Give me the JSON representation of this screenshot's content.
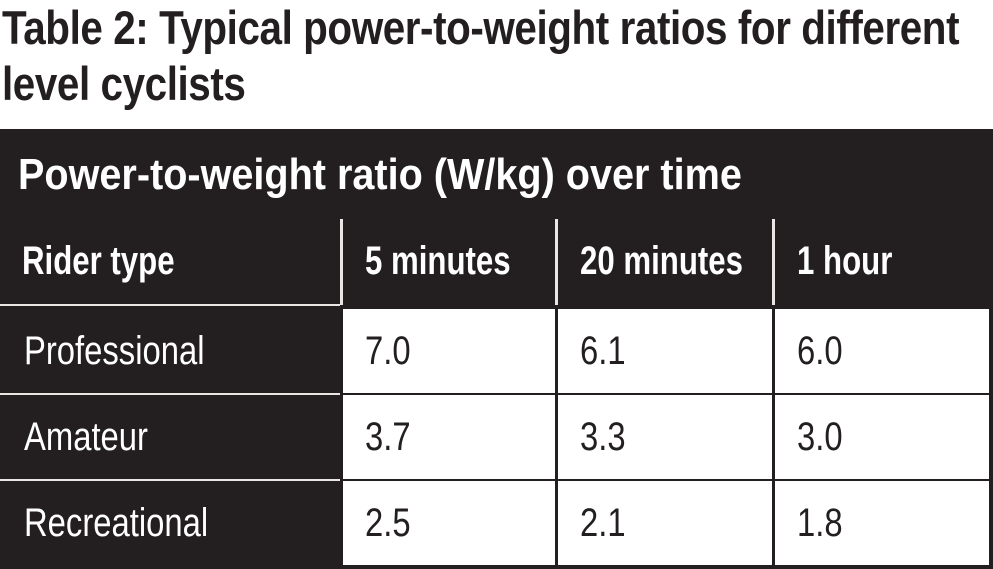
{
  "title": "Table 2: Typical power-to-weight ratios for different level cyclists",
  "banner": "Power-to-weight ratio (W/kg) over time",
  "headers": [
    "Rider type",
    "5 minutes",
    "20 minutes",
    "1 hour"
  ],
  "rows": [
    {
      "rider": "Professional",
      "five_min": "7.0",
      "twenty_min": "6.1",
      "one_hour": "6.0"
    },
    {
      "rider": "Amateur",
      "five_min": "3.7",
      "twenty_min": "3.3",
      "one_hour": "3.0"
    },
    {
      "rider": "Recreational",
      "five_min": "2.5",
      "twenty_min": "2.1",
      "one_hour": "1.8"
    }
  ],
  "colors": {
    "dark": "#231f20",
    "light": "#ffffff"
  }
}
